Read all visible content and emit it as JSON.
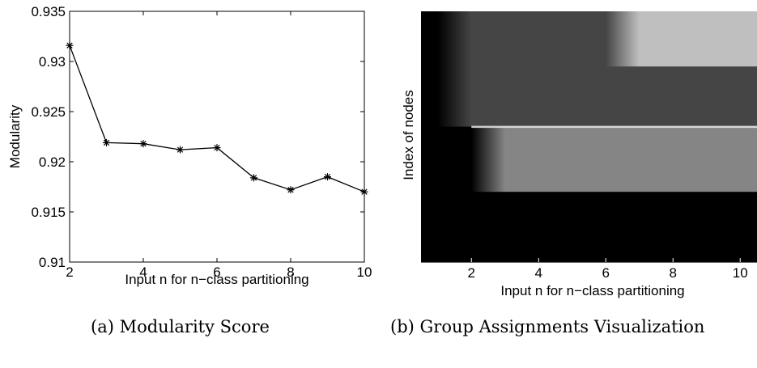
{
  "chart_data": [
    {
      "type": "line",
      "title": "",
      "xlabel": "Input n for n−class partitioning",
      "ylabel": "Modularity",
      "xlim": [
        2,
        10
      ],
      "ylim": [
        0.91,
        0.935
      ],
      "xticks": [
        "2",
        "4",
        "6",
        "8",
        "10"
      ],
      "yticks": [
        "0.91",
        "0.915",
        "0.92",
        "0.925",
        "0.93",
        "0.935"
      ],
      "x": [
        2,
        3,
        4,
        5,
        6,
        7,
        8,
        9,
        10
      ],
      "y": [
        0.9316,
        0.9219,
        0.9218,
        0.9212,
        0.9214,
        0.9184,
        0.9172,
        0.9185,
        0.917
      ],
      "marker": "asterisk",
      "line_color": "#000000",
      "grid": false
    },
    {
      "type": "heatmap",
      "title": "",
      "xlabel": "Input n for n−class partitioning",
      "ylabel": "Index of nodes",
      "xlim": [
        0.5,
        10.5
      ],
      "xticks": [
        "2",
        "4",
        "6",
        "8",
        "10"
      ],
      "colormap": "gray",
      "bands": [
        {
          "y_from": 0.0,
          "y_to": 0.22,
          "gray_by_n": [
            0.0,
            0.27,
            0.27,
            0.27,
            0.27,
            0.27,
            0.75,
            0.75,
            0.75,
            0.75
          ]
        },
        {
          "y_from": 0.22,
          "y_to": 0.46,
          "gray_by_n": [
            0.0,
            0.27,
            0.27,
            0.27,
            0.27,
            0.27,
            0.27,
            0.27,
            0.27,
            0.27
          ]
        },
        {
          "y_from": 0.46,
          "y_to": 0.72,
          "gray_by_n": [
            0.0,
            0.0,
            0.52,
            0.52,
            0.52,
            0.52,
            0.52,
            0.52,
            0.52,
            0.52
          ]
        },
        {
          "y_from": 0.72,
          "y_to": 1.0,
          "gray_by_n": [
            0.0,
            0.0,
            0.0,
            0.0,
            0.0,
            0.0,
            0.0,
            0.0,
            0.0,
            0.0
          ]
        }
      ]
    }
  ],
  "captions": {
    "a": "(a) Modularity Score",
    "b": "(b) Group Assignments Visualization"
  }
}
